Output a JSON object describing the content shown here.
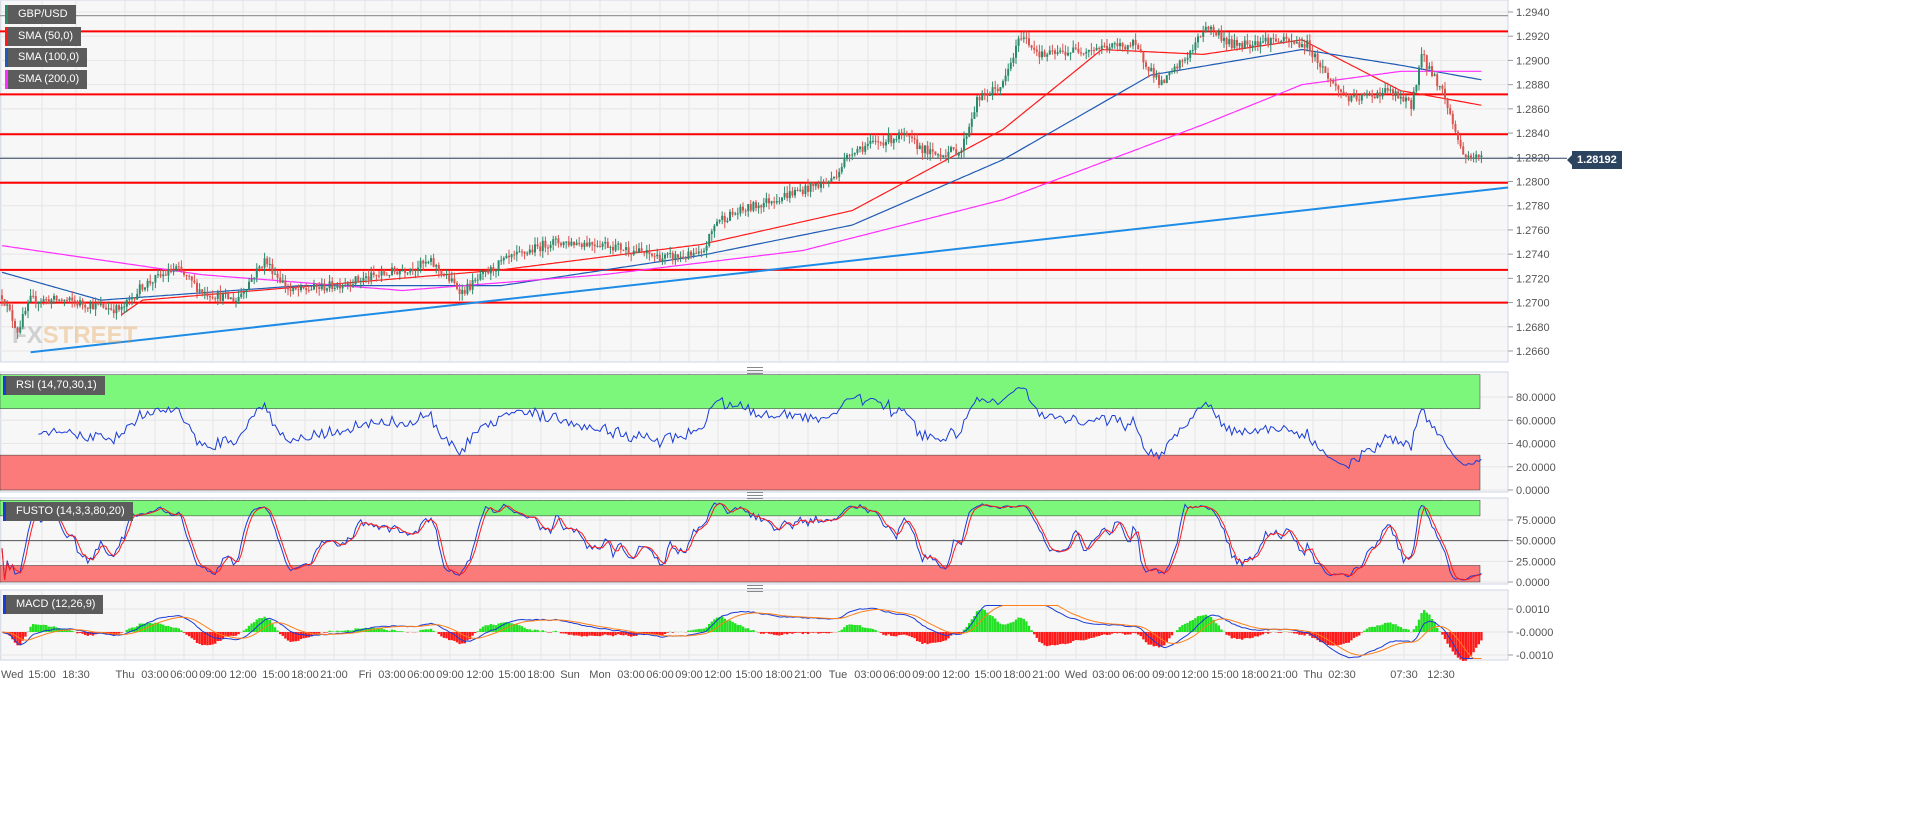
{
  "legend": {
    "symbol": {
      "label": "GBP/USD",
      "color": "#2a8a6a"
    },
    "sma50": {
      "label": "SMA (50,0)",
      "color": "#ff1a1a"
    },
    "sma100": {
      "label": "SMA (100,0)",
      "color": "#1f5bb5"
    },
    "sma200": {
      "label": "SMA (200,0)",
      "color": "#ff2dff"
    },
    "rsi": {
      "label": "RSI (14,70,30,1)",
      "color": "#1a3cd6"
    },
    "fusto": {
      "label": "FUSTO (14,3,3,80,20)",
      "color": "#1a3cd6"
    },
    "macd": {
      "label": "MACD (12,26,9)",
      "color": "#1a3cd6"
    }
  },
  "watermark": {
    "text_a": "FX",
    "text_b": "STREET"
  },
  "current_price": "1.28192",
  "chart_data": [
    {
      "type": "candlestick",
      "title": "GBP/USD",
      "bar_interval": "15 min",
      "ylim": [
        1.265,
        1.2948
      ],
      "y_ticks": [
        "1.2940",
        "1.2920",
        "1.2900",
        "1.2880",
        "1.2860",
        "1.2840",
        "1.2820",
        "1.2800",
        "1.2780",
        "1.2760",
        "1.2740",
        "1.2720",
        "1.2700",
        "1.2680",
        "1.2660"
      ],
      "x_ticks": [
        "Wed",
        "15:00",
        "18:30",
        "Thu",
        "03:00",
        "06:00",
        "09:00",
        "12:00",
        "15:00",
        "18:00",
        "21:00",
        "Fri",
        "03:00",
        "06:00",
        "09:00",
        "12:00",
        "15:00",
        "18:00",
        "Sun",
        "Mon",
        "03:00",
        "06:00",
        "09:00",
        "12:00",
        "15:00",
        "18:00",
        "21:00",
        "Tue",
        "03:00",
        "06:00",
        "09:00",
        "12:00",
        "15:00",
        "18:00",
        "21:00",
        "Wed",
        "03:00",
        "06:00",
        "09:00",
        "12:00",
        "15:00",
        "18:00",
        "21:00",
        "Thu",
        "02:30",
        "07:30",
        "12:30"
      ],
      "close_path": [
        [
          0,
          1.2706
        ],
        [
          6,
          1.2677
        ],
        [
          11,
          1.2702
        ],
        [
          23,
          1.2702
        ],
        [
          46,
          1.2694
        ],
        [
          54,
          1.2714
        ],
        [
          67,
          1.2728
        ],
        [
          77,
          1.2709
        ],
        [
          90,
          1.2702
        ],
        [
          101,
          1.2735
        ],
        [
          111,
          1.2709
        ],
        [
          127,
          1.2714
        ],
        [
          146,
          1.2723
        ],
        [
          165,
          1.2733
        ],
        [
          177,
          1.2709
        ],
        [
          192,
          1.2733
        ],
        [
          211,
          1.275
        ],
        [
          231,
          1.2749
        ],
        [
          254,
          1.2737
        ],
        [
          269,
          1.2739
        ],
        [
          275,
          1.2768
        ],
        [
          296,
          1.2785
        ],
        [
          319,
          1.2801
        ],
        [
          327,
          1.2826
        ],
        [
          346,
          1.2838
        ],
        [
          358,
          1.2822
        ],
        [
          369,
          1.2826
        ],
        [
          375,
          1.2867
        ],
        [
          385,
          1.288
        ],
        [
          392,
          1.2921
        ],
        [
          400,
          1.2904
        ],
        [
          415,
          1.2909
        ],
        [
          435,
          1.2913
        ],
        [
          446,
          1.288
        ],
        [
          458,
          1.2909
        ],
        [
          463,
          1.2929
        ],
        [
          473,
          1.2913
        ],
        [
          488,
          1.2917
        ],
        [
          502,
          1.2913
        ],
        [
          512,
          1.288
        ],
        [
          519,
          1.2867
        ],
        [
          533,
          1.2875
        ],
        [
          542,
          1.2863
        ],
        [
          546,
          1.2904
        ],
        [
          554,
          1.2875
        ],
        [
          562,
          1.2822
        ],
        [
          569,
          1.28192
        ]
      ],
      "series": [
        {
          "name": "SMA (50,0)",
          "color": "#ff1a1a",
          "values": [
            [
              46,
              1.269
            ],
            [
              54,
              1.2702
            ],
            [
              192,
              1.2727
            ],
            [
              269,
              1.2748
            ],
            [
              327,
              1.2776
            ],
            [
              385,
              1.2843
            ],
            [
              423,
              1.2909
            ],
            [
              462,
              1.2905
            ],
            [
              500,
              1.2917
            ],
            [
              538,
              1.2875
            ],
            [
              569,
              1.2863
            ]
          ]
        },
        {
          "name": "SMA (100,0)",
          "color": "#1f5bb5",
          "values": [
            [
              0,
              1.2725
            ],
            [
              38,
              1.2702
            ],
            [
              115,
              1.2714
            ],
            [
              192,
              1.2714
            ],
            [
              269,
              1.2739
            ],
            [
              327,
              1.2764
            ],
            [
              385,
              1.2818
            ],
            [
              442,
              1.2888
            ],
            [
              500,
              1.2909
            ],
            [
              538,
              1.2896
            ],
            [
              569,
              1.2884
            ]
          ]
        },
        {
          "name": "SMA (200,0)",
          "color": "#ff2dff",
          "values": [
            [
              0,
              1.2747
            ],
            [
              77,
              1.2723
            ],
            [
              154,
              1.271
            ],
            [
              231,
              1.2723
            ],
            [
              308,
              1.2743
            ],
            [
              385,
              1.2785
            ],
            [
              462,
              1.2847
            ],
            [
              500,
              1.288
            ],
            [
              538,
              1.2891
            ],
            [
              569,
              1.2891
            ]
          ]
        }
      ],
      "horizontal_levels": [
        1.2924,
        1.2872,
        1.2839,
        1.2799,
        1.2727,
        1.27
      ],
      "level_color": "#ff0000",
      "upper_reference": 1.2937,
      "trendline": {
        "color": "#1e8ce6",
        "from": [
          11,
          1.2659
        ],
        "to": [
          580,
          1.2795
        ]
      },
      "up_color": "#2a8a6a",
      "down_color": "#d9534f",
      "grid": true
    },
    {
      "type": "line",
      "title": "RSI (14,70,30,1)",
      "period": 14,
      "overbought": 70,
      "oversold": 30,
      "ylim": [
        0,
        100
      ],
      "y_ticks": [
        "80.0000",
        "60.0000",
        "40.0000",
        "20.0000",
        "0.0000"
      ],
      "zones": {
        "overbought": "#7cf77c",
        "oversold": "#fb7b7b"
      }
    },
    {
      "type": "line",
      "title": "FUSTO (14,3,3,80,20)",
      "period": 14,
      "k_smooth": 3,
      "d_smooth": 3,
      "overbought": 80,
      "oversold": 20,
      "ylim": [
        0,
        100
      ],
      "y_ticks": [
        "75.0000",
        "50.0000",
        "25.0000",
        "0.0000"
      ],
      "k_color": "#1a3cd6",
      "d_color": "#ff1a1a"
    },
    {
      "type": "line",
      "title": "MACD (12,26,9)",
      "fast": 12,
      "slow": 26,
      "signal": 9,
      "y_ticks": [
        "0.0010",
        "-0.0000",
        "-0.0010"
      ],
      "macd_color": "#1a3cd6",
      "signal_color": "#ff7f1a",
      "hist_up": "#22e022",
      "hist_down": "#ff1a1a"
    }
  ]
}
